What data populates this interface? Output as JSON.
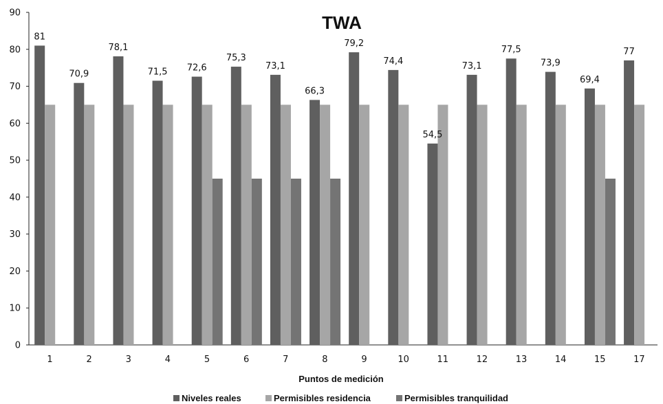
{
  "chart_data": {
    "type": "bar",
    "title": "TWA",
    "xlabel": "Puntos de medición",
    "ylabel": "",
    "ylim": [
      0,
      90
    ],
    "yticks": [
      0,
      10,
      20,
      30,
      40,
      50,
      60,
      70,
      80,
      90
    ],
    "grid": false,
    "legend_position": "bottom",
    "categories": [
      "1",
      "2",
      "3",
      "4",
      "5",
      "6",
      "7",
      "8",
      "9",
      "10",
      "11",
      "12",
      "13",
      "14",
      "15",
      "17"
    ],
    "series": [
      {
        "name": "Niveles reales",
        "color": "#5f5f5f",
        "values": [
          81,
          70.9,
          78.1,
          71.5,
          72.6,
          75.3,
          73.1,
          66.3,
          79.2,
          74.4,
          54.5,
          73.1,
          77.5,
          73.9,
          69.4,
          77
        ],
        "labels": [
          "81",
          "70,9",
          "78,1",
          "71,5",
          "72,6",
          "75,3",
          "73,1",
          "66,3",
          "79,2",
          "74,4",
          "54,5",
          "73,1",
          "77,5",
          "73,9",
          "69,4",
          "77"
        ]
      },
      {
        "name": "Permisibles residencia",
        "color": "#a6a6a6",
        "values": [
          65,
          65,
          65,
          65,
          65,
          65,
          65,
          65,
          65,
          65,
          65,
          65,
          65,
          65,
          65,
          65
        ]
      },
      {
        "name": "Permisibles tranquilidad",
        "color": "#747474",
        "values": [
          null,
          null,
          null,
          null,
          45,
          45,
          45,
          45,
          null,
          null,
          null,
          null,
          null,
          null,
          45,
          null
        ]
      }
    ]
  }
}
